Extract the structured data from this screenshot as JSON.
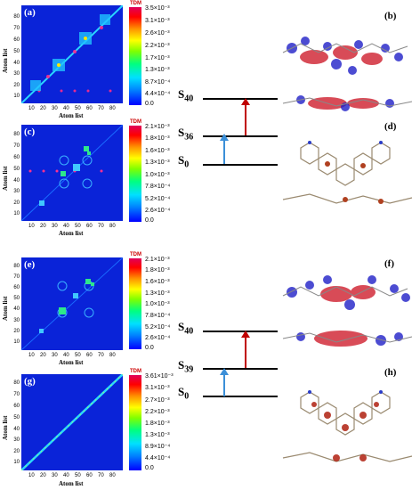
{
  "panels": {
    "a": {
      "letter": "(a)",
      "xlabel": "Atom list",
      "ylabel": "Atom list",
      "yticks": [
        "80",
        "70",
        "60",
        "50",
        "40",
        "30",
        "20",
        "10"
      ],
      "xticks": [
        "10",
        "20",
        "30",
        "40",
        "50",
        "60",
        "70",
        "80"
      ],
      "cbar_title": "TDM",
      "cbar_labels": [
        "3.5×10⁻³",
        "3.1×10⁻³",
        "2.6×10⁻³",
        "2.2×10⁻³",
        "1.7×10⁻³",
        "1.3×10⁻³",
        "8.7×10⁻⁴",
        "4.4×10⁻⁴",
        "0.0"
      ]
    },
    "c": {
      "letter": "(c)",
      "xlabel": "Atom list",
      "ylabel": "Atom list",
      "yticks": [
        "80",
        "70",
        "60",
        "50",
        "40",
        "30",
        "20",
        "10"
      ],
      "xticks": [
        "10",
        "20",
        "30",
        "40",
        "50",
        "60",
        "70",
        "80"
      ],
      "cbar_title": "TDM",
      "cbar_labels": [
        "2.1×10⁻³",
        "1.8×10⁻³",
        "1.6×10⁻³",
        "1.3×10⁻³",
        "1.0×10⁻³",
        "7.8×10⁻⁴",
        "5.2×10⁻⁴",
        "2.6×10⁻⁴",
        "0.0"
      ]
    },
    "e": {
      "letter": "(e)",
      "xlabel": "Atom list",
      "ylabel": "Atom list",
      "yticks": [
        "80",
        "70",
        "60",
        "50",
        "40",
        "30",
        "20",
        "10"
      ],
      "xticks": [
        "10",
        "20",
        "30",
        "40",
        "50",
        "60",
        "70",
        "80"
      ],
      "cbar_title": "TDM",
      "cbar_labels": [
        "2.1×10⁻³",
        "1.8×10⁻³",
        "1.6×10⁻³",
        "1.3×10⁻³",
        "1.0×10⁻³",
        "7.8×10⁻⁴",
        "5.2×10⁻⁴",
        "2.6×10⁻⁴",
        "0.0"
      ]
    },
    "g": {
      "letter": "(g)",
      "xlabel": "Atom list",
      "ylabel": "Atom list",
      "yticks": [
        "80",
        "70",
        "60",
        "50",
        "40",
        "30",
        "20",
        "10"
      ],
      "xticks": [
        "10",
        "20",
        "30",
        "40",
        "50",
        "60",
        "70",
        "80"
      ],
      "cbar_title": "TDM",
      "cbar_labels": [
        "3.61×10⁻³",
        "3.1×10⁻³",
        "2.7×10⁻³",
        "2.2×10⁻³",
        "1.8×10⁻³",
        "1.3×10⁻³",
        "8.9×10⁻⁴",
        "4.4×10⁻⁴",
        "0.0"
      ]
    }
  },
  "diagram_top": {
    "s_high": "S",
    "s_high_sub": "40",
    "s_mid": "S",
    "s_mid_sub": "36",
    "s_low": "S",
    "s_low_sub": "0"
  },
  "diagram_bottom": {
    "s_high": "S",
    "s_high_sub": "40",
    "s_mid": "S",
    "s_mid_sub": "39",
    "s_low": "S",
    "s_low_sub": "0"
  },
  "fig_letters": {
    "b": "(b)",
    "d": "(d)",
    "f": "(f)",
    "h": "(h)"
  },
  "colors": {
    "heatmap_bg": "#0a23d8",
    "arrow_up_red": "#c00000",
    "arrow_up_blue": "#3b8fd8"
  }
}
